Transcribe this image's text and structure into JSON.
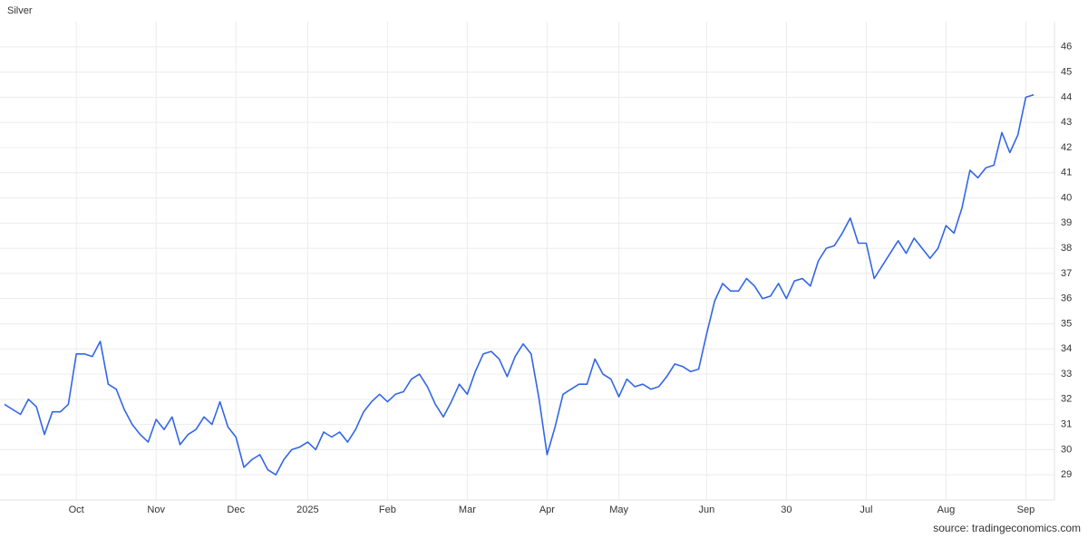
{
  "chart_data": {
    "type": "line",
    "title": "Silver",
    "source": "source: tradingeconomics.com",
    "color": "#3366e6",
    "grid": true,
    "categories": [
      null,
      null,
      null,
      null,
      null,
      null,
      null,
      null,
      null,
      "Oct",
      null,
      null,
      null,
      null,
      null,
      null,
      null,
      null,
      null,
      "Nov",
      null,
      null,
      null,
      null,
      null,
      null,
      null,
      null,
      null,
      "Dec",
      null,
      null,
      null,
      null,
      null,
      null,
      null,
      null,
      "2025",
      null,
      null,
      null,
      null,
      null,
      null,
      null,
      null,
      null,
      "Feb",
      null,
      null,
      null,
      null,
      null,
      null,
      null,
      null,
      null,
      "Mar",
      null,
      null,
      null,
      null,
      null,
      null,
      null,
      null,
      null,
      "Apr",
      null,
      null,
      null,
      null,
      null,
      null,
      null,
      null,
      "May",
      null,
      null,
      null,
      null,
      null,
      null,
      null,
      null,
      null,
      null,
      "Jun",
      null,
      null,
      null,
      null,
      null,
      null,
      null,
      null,
      null,
      "30",
      null,
      null,
      null,
      null,
      null,
      null,
      null,
      null,
      null,
      "Jul",
      null,
      null,
      null,
      null,
      null,
      null,
      null,
      null,
      null,
      "Aug",
      null,
      null,
      null,
      null,
      null,
      null,
      null,
      null,
      null,
      "Sep",
      null
    ],
    "values": [
      31.8,
      31.6,
      31.4,
      32.0,
      31.7,
      30.6,
      31.5,
      31.5,
      31.8,
      33.8,
      33.8,
      33.7,
      34.3,
      32.6,
      32.4,
      31.6,
      31.0,
      30.6,
      30.3,
      31.2,
      30.8,
      31.3,
      30.2,
      30.6,
      30.8,
      31.3,
      31.0,
      31.9,
      30.9,
      30.5,
      29.3,
      29.6,
      29.8,
      29.2,
      29.0,
      29.6,
      30.0,
      30.1,
      30.3,
      30.0,
      30.7,
      30.5,
      30.7,
      30.3,
      30.8,
      31.5,
      31.9,
      32.2,
      31.9,
      32.2,
      32.3,
      32.8,
      33.0,
      32.5,
      31.8,
      31.3,
      31.9,
      32.6,
      32.2,
      33.1,
      33.8,
      33.9,
      33.6,
      32.9,
      33.7,
      34.2,
      33.8,
      32.0,
      29.8,
      30.9,
      32.2,
      32.4,
      32.6,
      32.6,
      33.6,
      33.0,
      32.8,
      32.1,
      32.8,
      32.5,
      32.6,
      32.4,
      32.5,
      32.9,
      33.4,
      33.3,
      33.1,
      33.2,
      34.6,
      35.9,
      36.6,
      36.3,
      36.3,
      36.8,
      36.5,
      36.0,
      36.1,
      36.6,
      36.0,
      36.7,
      36.8,
      36.5,
      37.5,
      38.0,
      38.1,
      38.6,
      39.2,
      38.2,
      38.2,
      36.8,
      37.3,
      37.8,
      38.3,
      37.8,
      38.4,
      38.0,
      37.6,
      38.0,
      38.9,
      38.6,
      39.6,
      41.1,
      40.8,
      41.2,
      41.3,
      42.6,
      41.8,
      42.5,
      44.0,
      44.1
    ],
    "ylim": [
      28,
      47
    ],
    "yticks": [
      29,
      30,
      31,
      32,
      33,
      34,
      35,
      36,
      37,
      38,
      39,
      40,
      41,
      42,
      43,
      44,
      45,
      46
    ]
  }
}
